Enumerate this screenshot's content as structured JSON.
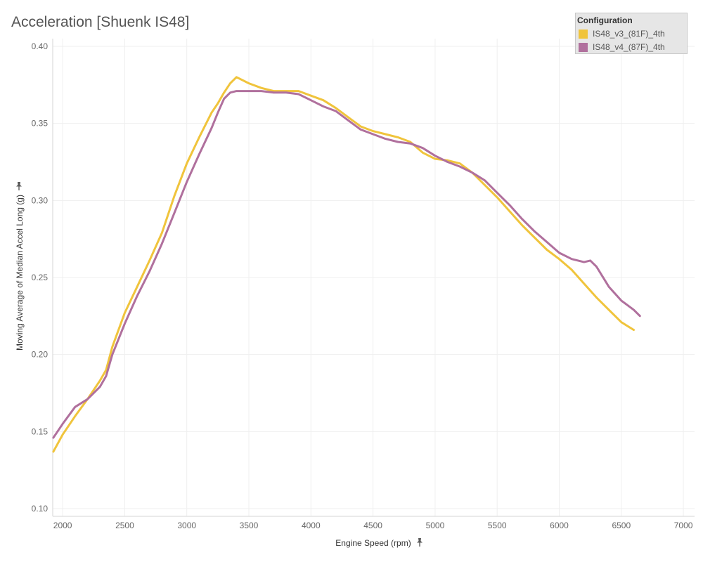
{
  "chart_data": {
    "type": "line",
    "title": "Acceleration [Shuenk IS48]",
    "xlabel": "Engine Speed (rpm)",
    "ylabel": "Moving Average of Median Accel Long (g)",
    "xlim": [
      1920,
      7090
    ],
    "ylim": [
      0.095,
      0.405
    ],
    "x_ticks": [
      2000,
      2500,
      3000,
      3500,
      4000,
      4500,
      5000,
      5500,
      6000,
      6500,
      7000
    ],
    "y_ticks": [
      0.1,
      0.15,
      0.2,
      0.25,
      0.3,
      0.35,
      0.4
    ],
    "y_tick_labels": [
      "0.10",
      "0.15",
      "0.20",
      "0.25",
      "0.30",
      "0.35",
      "0.40"
    ],
    "grid": true,
    "legend": {
      "title": "Configuration",
      "position": "top-right"
    },
    "series": [
      {
        "name": "IS48_v3_(81F)_4th",
        "color": "#f0c43c",
        "x": [
          1925,
          2000,
          2100,
          2200,
          2300,
          2350,
          2400,
          2500,
          2600,
          2700,
          2800,
          2900,
          3000,
          3100,
          3200,
          3250,
          3300,
          3350,
          3400,
          3500,
          3600,
          3700,
          3800,
          3900,
          4000,
          4100,
          4200,
          4300,
          4400,
          4500,
          4600,
          4700,
          4800,
          4900,
          5000,
          5100,
          5200,
          5300,
          5400,
          5500,
          5600,
          5700,
          5800,
          5900,
          6000,
          6100,
          6200,
          6300,
          6400,
          6500,
          6600
        ],
        "values": [
          0.137,
          0.148,
          0.16,
          0.171,
          0.183,
          0.19,
          0.205,
          0.227,
          0.244,
          0.261,
          0.279,
          0.303,
          0.324,
          0.341,
          0.357,
          0.363,
          0.37,
          0.376,
          0.38,
          0.376,
          0.373,
          0.371,
          0.371,
          0.371,
          0.368,
          0.365,
          0.36,
          0.354,
          0.348,
          0.345,
          0.343,
          0.341,
          0.338,
          0.331,
          0.327,
          0.326,
          0.324,
          0.318,
          0.31,
          0.302,
          0.293,
          0.284,
          0.276,
          0.268,
          0.262,
          0.255,
          0.246,
          0.237,
          0.229,
          0.221,
          0.216
        ]
      },
      {
        "name": "IS48_v4_(87F)_4th",
        "color": "#b0709d",
        "x": [
          1925,
          2000,
          2100,
          2200,
          2300,
          2350,
          2400,
          2500,
          2600,
          2700,
          2800,
          2900,
          3000,
          3100,
          3200,
          3250,
          3300,
          3350,
          3400,
          3500,
          3600,
          3700,
          3800,
          3900,
          4000,
          4100,
          4200,
          4300,
          4400,
          4500,
          4600,
          4700,
          4800,
          4900,
          5000,
          5100,
          5200,
          5300,
          5400,
          5500,
          5600,
          5700,
          5800,
          5900,
          6000,
          6100,
          6200,
          6250,
          6300,
          6400,
          6500,
          6600,
          6650
        ],
        "values": [
          0.146,
          0.155,
          0.166,
          0.171,
          0.179,
          0.186,
          0.2,
          0.22,
          0.238,
          0.254,
          0.272,
          0.292,
          0.312,
          0.33,
          0.347,
          0.357,
          0.366,
          0.37,
          0.371,
          0.371,
          0.371,
          0.37,
          0.37,
          0.369,
          0.365,
          0.361,
          0.358,
          0.352,
          0.346,
          0.343,
          0.34,
          0.338,
          0.337,
          0.334,
          0.329,
          0.325,
          0.322,
          0.318,
          0.313,
          0.305,
          0.297,
          0.288,
          0.28,
          0.273,
          0.266,
          0.262,
          0.26,
          0.261,
          0.257,
          0.244,
          0.235,
          0.229,
          0.225
        ]
      }
    ]
  }
}
